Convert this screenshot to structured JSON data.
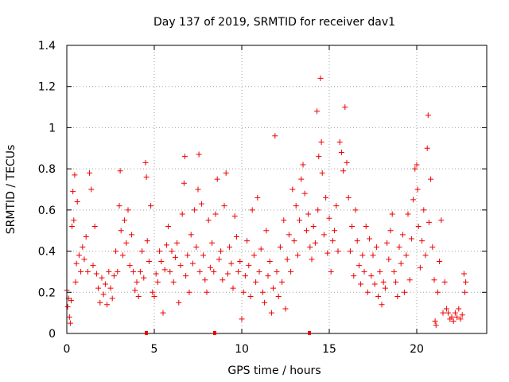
{
  "chart_data": {
    "type": "scatter",
    "title": "Day 137 of 2019, SRMTID for receiver dav1",
    "xlabel": "GPS time / hours",
    "ylabel": "SRMTID / TECUs",
    "xlim": [
      0,
      24
    ],
    "ylim": [
      0,
      1.4
    ],
    "xticks": [
      0,
      5,
      10,
      15,
      20
    ],
    "yticks": [
      0,
      0.2,
      0.4,
      0.6,
      0.8,
      1,
      1.2,
      1.4
    ],
    "xtick_labels": [
      "0",
      "5",
      "10",
      "15",
      "20"
    ],
    "ytick_labels": [
      "0",
      "0.2",
      "0.4",
      "0.6",
      "0.8",
      "1",
      "1.2",
      "1.4"
    ],
    "grid": true,
    "marker": "plus",
    "series": [
      {
        "name": "SRMTID",
        "color": "#ee0000",
        "points": [
          [
            0.0,
            0.21
          ],
          [
            0.05,
            0.13
          ],
          [
            0.1,
            0.17
          ],
          [
            0.15,
            0.08
          ],
          [
            0.2,
            0.05
          ],
          [
            0.25,
            0.16
          ],
          [
            0.3,
            0.52
          ],
          [
            0.35,
            0.69
          ],
          [
            0.4,
            0.55
          ],
          [
            0.45,
            0.77
          ],
          [
            0.5,
            0.25
          ],
          [
            0.55,
            0.34
          ],
          [
            0.6,
            0.64
          ],
          [
            0.7,
            0.38
          ],
          [
            0.8,
            0.3
          ],
          [
            0.9,
            0.42
          ],
          [
            1.0,
            0.36
          ],
          [
            1.1,
            0.47
          ],
          [
            1.2,
            0.3
          ],
          [
            1.3,
            0.78
          ],
          [
            1.4,
            0.7
          ],
          [
            1.5,
            0.33
          ],
          [
            1.6,
            0.52
          ],
          [
            1.7,
            0.29
          ],
          [
            1.8,
            0.22
          ],
          [
            1.9,
            0.15
          ],
          [
            2.0,
            0.27
          ],
          [
            2.1,
            0.19
          ],
          [
            2.2,
            0.24
          ],
          [
            2.3,
            0.14
          ],
          [
            2.4,
            0.3
          ],
          [
            2.5,
            0.22
          ],
          [
            2.6,
            0.17
          ],
          [
            2.7,
            0.28
          ],
          [
            2.8,
            0.4
          ],
          [
            2.9,
            0.3
          ],
          [
            3.0,
            0.62
          ],
          [
            3.05,
            0.79
          ],
          [
            3.1,
            0.5
          ],
          [
            3.2,
            0.38
          ],
          [
            3.3,
            0.55
          ],
          [
            3.4,
            0.44
          ],
          [
            3.5,
            0.6
          ],
          [
            3.6,
            0.33
          ],
          [
            3.7,
            0.48
          ],
          [
            3.8,
            0.3
          ],
          [
            3.9,
            0.21
          ],
          [
            4.0,
            0.25
          ],
          [
            4.1,
            0.18
          ],
          [
            4.2,
            0.3
          ],
          [
            4.3,
            0.4
          ],
          [
            4.4,
            0.27
          ],
          [
            4.5,
            0.83
          ],
          [
            4.55,
            0.76
          ],
          [
            4.6,
            0.45
          ],
          [
            4.7,
            0.35
          ],
          [
            4.8,
            0.62
          ],
          [
            4.9,
            0.2
          ],
          [
            5.0,
            0.18
          ],
          [
            5.1,
            0.29
          ],
          [
            5.2,
            0.25
          ],
          [
            5.3,
            0.4
          ],
          [
            5.4,
            0.35
          ],
          [
            5.5,
            0.1
          ],
          [
            5.6,
            0.31
          ],
          [
            5.7,
            0.43
          ],
          [
            5.8,
            0.52
          ],
          [
            5.9,
            0.3
          ],
          [
            6.0,
            0.4
          ],
          [
            6.1,
            0.25
          ],
          [
            6.2,
            0.37
          ],
          [
            6.3,
            0.44
          ],
          [
            6.4,
            0.15
          ],
          [
            6.5,
            0.33
          ],
          [
            6.6,
            0.58
          ],
          [
            6.7,
            0.73
          ],
          [
            6.75,
            0.86
          ],
          [
            6.8,
            0.28
          ],
          [
            6.9,
            0.38
          ],
          [
            7.0,
            0.2
          ],
          [
            7.1,
            0.48
          ],
          [
            7.2,
            0.34
          ],
          [
            7.3,
            0.6
          ],
          [
            7.4,
            0.42
          ],
          [
            7.5,
            0.7
          ],
          [
            7.55,
            0.87
          ],
          [
            7.6,
            0.3
          ],
          [
            7.7,
            0.63
          ],
          [
            7.8,
            0.38
          ],
          [
            7.9,
            0.26
          ],
          [
            8.0,
            0.2
          ],
          [
            8.1,
            0.55
          ],
          [
            8.2,
            0.32
          ],
          [
            8.3,
            0.44
          ],
          [
            8.4,
            0.3
          ],
          [
            8.5,
            0.58
          ],
          [
            8.6,
            0.75
          ],
          [
            8.7,
            0.36
          ],
          [
            8.8,
            0.4
          ],
          [
            8.9,
            0.26
          ],
          [
            9.0,
            0.62
          ],
          [
            9.1,
            0.78
          ],
          [
            9.2,
            0.29
          ],
          [
            9.3,
            0.42
          ],
          [
            9.4,
            0.34
          ],
          [
            9.5,
            0.22
          ],
          [
            9.6,
            0.57
          ],
          [
            9.7,
            0.47
          ],
          [
            9.8,
            0.3
          ],
          [
            9.9,
            0.35
          ],
          [
            10.0,
            0.07
          ],
          [
            10.1,
            0.2
          ],
          [
            10.2,
            0.28
          ],
          [
            10.3,
            0.45
          ],
          [
            10.4,
            0.33
          ],
          [
            10.5,
            0.18
          ],
          [
            10.6,
            0.6
          ],
          [
            10.7,
            0.38
          ],
          [
            10.8,
            0.25
          ],
          [
            10.9,
            0.66
          ],
          [
            11.0,
            0.3
          ],
          [
            11.1,
            0.41
          ],
          [
            11.2,
            0.2
          ],
          [
            11.3,
            0.15
          ],
          [
            11.4,
            0.5
          ],
          [
            11.5,
            0.28
          ],
          [
            11.6,
            0.35
          ],
          [
            11.7,
            0.1
          ],
          [
            11.8,
            0.22
          ],
          [
            11.9,
            0.96
          ],
          [
            12.0,
            0.3
          ],
          [
            12.1,
            0.18
          ],
          [
            12.2,
            0.42
          ],
          [
            12.3,
            0.25
          ],
          [
            12.4,
            0.55
          ],
          [
            12.5,
            0.12
          ],
          [
            12.6,
            0.36
          ],
          [
            12.7,
            0.48
          ],
          [
            12.8,
            0.3
          ],
          [
            12.9,
            0.7
          ],
          [
            13.0,
            0.45
          ],
          [
            13.1,
            0.62
          ],
          [
            13.2,
            0.38
          ],
          [
            13.3,
            0.55
          ],
          [
            13.4,
            0.75
          ],
          [
            13.5,
            0.82
          ],
          [
            13.6,
            0.68
          ],
          [
            13.7,
            0.5
          ],
          [
            13.8,
            0.58
          ],
          [
            13.9,
            0.42
          ],
          [
            14.0,
            0.36
          ],
          [
            14.1,
            0.52
          ],
          [
            14.2,
            0.44
          ],
          [
            14.3,
            1.08
          ],
          [
            14.35,
            0.6
          ],
          [
            14.4,
            0.86
          ],
          [
            14.5,
            1.24
          ],
          [
            14.55,
            0.93
          ],
          [
            14.6,
            0.78
          ],
          [
            14.7,
            0.48
          ],
          [
            14.8,
            0.66
          ],
          [
            14.9,
            0.39
          ],
          [
            15.0,
            0.56
          ],
          [
            15.1,
            0.3
          ],
          [
            15.2,
            0.45
          ],
          [
            15.3,
            0.5
          ],
          [
            15.4,
            0.62
          ],
          [
            15.5,
            0.4
          ],
          [
            15.6,
            0.93
          ],
          [
            15.7,
            0.88
          ],
          [
            15.8,
            0.79
          ],
          [
            15.9,
            1.1
          ],
          [
            16.0,
            0.83
          ],
          [
            16.1,
            0.66
          ],
          [
            16.2,
            0.4
          ],
          [
            16.3,
            0.52
          ],
          [
            16.4,
            0.28
          ],
          [
            16.5,
            0.6
          ],
          [
            16.6,
            0.45
          ],
          [
            16.7,
            0.33
          ],
          [
            16.8,
            0.24
          ],
          [
            16.9,
            0.38
          ],
          [
            17.0,
            0.3
          ],
          [
            17.1,
            0.52
          ],
          [
            17.2,
            0.2
          ],
          [
            17.3,
            0.46
          ],
          [
            17.4,
            0.28
          ],
          [
            17.5,
            0.38
          ],
          [
            17.6,
            0.24
          ],
          [
            17.7,
            0.42
          ],
          [
            17.8,
            0.18
          ],
          [
            17.9,
            0.3
          ],
          [
            18.0,
            0.14
          ],
          [
            18.1,
            0.25
          ],
          [
            18.2,
            0.22
          ],
          [
            18.3,
            0.44
          ],
          [
            18.4,
            0.36
          ],
          [
            18.5,
            0.5
          ],
          [
            18.6,
            0.58
          ],
          [
            18.7,
            0.3
          ],
          [
            18.8,
            0.25
          ],
          [
            18.9,
            0.18
          ],
          [
            19.0,
            0.42
          ],
          [
            19.1,
            0.34
          ],
          [
            19.2,
            0.48
          ],
          [
            19.3,
            0.2
          ],
          [
            19.4,
            0.38
          ],
          [
            19.5,
            0.58
          ],
          [
            19.6,
            0.26
          ],
          [
            19.7,
            0.46
          ],
          [
            19.8,
            0.65
          ],
          [
            19.9,
            0.8
          ],
          [
            20.0,
            0.82
          ],
          [
            20.05,
            0.7
          ],
          [
            20.1,
            0.52
          ],
          [
            20.2,
            0.32
          ],
          [
            20.3,
            0.45
          ],
          [
            20.4,
            0.6
          ],
          [
            20.5,
            0.38
          ],
          [
            20.6,
            0.9
          ],
          [
            20.65,
            1.06
          ],
          [
            20.7,
            0.54
          ],
          [
            20.8,
            0.75
          ],
          [
            20.9,
            0.42
          ],
          [
            21.0,
            0.26
          ],
          [
            21.05,
            0.06
          ],
          [
            21.1,
            0.04
          ],
          [
            21.2,
            0.2
          ],
          [
            21.3,
            0.35
          ],
          [
            21.4,
            0.55
          ],
          [
            21.5,
            0.1
          ],
          [
            21.6,
            0.25
          ],
          [
            21.7,
            0.12
          ],
          [
            21.8,
            0.1
          ],
          [
            21.9,
            0.07
          ],
          [
            22.0,
            0.08
          ],
          [
            22.1,
            0.06
          ],
          [
            22.2,
            0.1
          ],
          [
            22.3,
            0.08
          ],
          [
            22.4,
            0.12
          ],
          [
            22.5,
            0.07
          ],
          [
            22.6,
            0.09
          ],
          [
            22.7,
            0.29
          ],
          [
            22.75,
            0.2
          ],
          [
            22.8,
            0.25
          ]
        ]
      }
    ]
  }
}
